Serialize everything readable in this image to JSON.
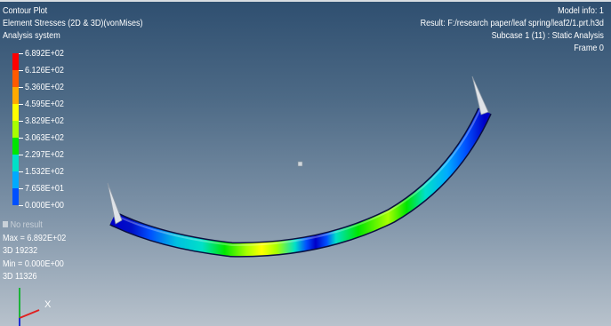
{
  "plot": {
    "title": "Contour Plot",
    "subtitle": "Element Stresses (2D & 3D)(vonMises)",
    "system": "Analysis system"
  },
  "legend": {
    "values": [
      "6.892E+02",
      "6.126E+02",
      "5.360E+02",
      "4.595E+02",
      "3.829E+02",
      "3.063E+02",
      "2.297E+02",
      "1.532E+02",
      "7.658E+01",
      "0.000E+00"
    ],
    "colors": [
      "#ff0000",
      "#ff5a00",
      "#ffaa00",
      "#ffff00",
      "#a8ff00",
      "#00e600",
      "#00e0c8",
      "#00aaff",
      "#0050ff",
      "#0000c8"
    ],
    "no_result": "No result"
  },
  "stats": {
    "max": "Max = 6.892E+02",
    "max_id": "3D 19232",
    "min": "Min = 0.000E+00",
    "min_id": "3D 11326"
  },
  "info": {
    "model": "Model info: 1",
    "result": "Result: F:/research paper/leaf spring/leaf2/1.prt.h3d",
    "subcase": "Subcase 1 (11) : Static Analysis",
    "frame": "Frame 0"
  },
  "triad": {
    "x_label": "X"
  },
  "colors": {
    "bg_top": "#2f4f70",
    "bg_bottom": "#b8c2cc",
    "text": "#ffffff"
  }
}
